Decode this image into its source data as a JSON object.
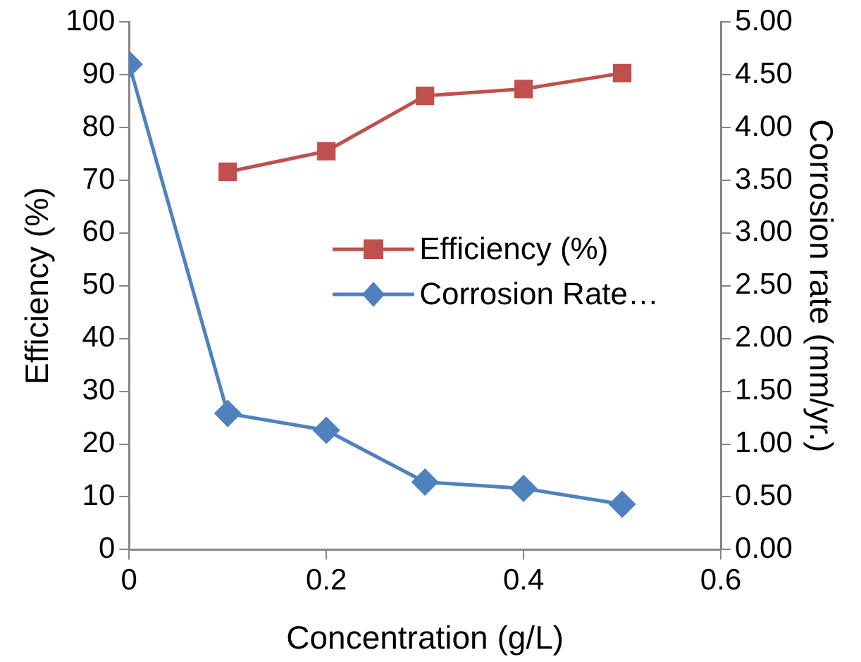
{
  "chart_data": {
    "type": "line",
    "xlabel": "Concentration (g/L)",
    "ylabel": "Efficiency (%)",
    "y2label": "Corrosion rate (mm/yr.)",
    "xlim": [
      0,
      0.6
    ],
    "xticks": [
      0,
      0.2,
      0.4,
      0.6
    ],
    "ylim": [
      0,
      100
    ],
    "yticks": [
      0,
      10,
      20,
      30,
      40,
      50,
      60,
      70,
      80,
      90,
      100
    ],
    "y2lim": [
      0,
      5
    ],
    "y2ticks": [
      {
        "value": 0,
        "label": "0.00"
      },
      {
        "value": 0.5,
        "label": "0.50"
      },
      {
        "value": 1,
        "label": "1.00"
      },
      {
        "value": 1.5,
        "label": "1.50"
      },
      {
        "value": 2,
        "label": "2.00"
      },
      {
        "value": 2.5,
        "label": "2.50"
      },
      {
        "value": 3,
        "label": "3.00"
      },
      {
        "value": 3.5,
        "label": "3.50"
      },
      {
        "value": 4,
        "label": "4.00"
      },
      {
        "value": 4.5,
        "label": "4.50"
      },
      {
        "value": 5,
        "label": "5.00"
      }
    ],
    "grid": false,
    "legend": "center",
    "series": [
      {
        "name": "Efficiency (%)",
        "color": "#c0504d",
        "marker": "square",
        "x": [
          0.1,
          0.2,
          0.3,
          0.4,
          0.5
        ],
        "values": [
          71.6,
          75.5,
          86.0,
          87.3,
          90.3
        ]
      },
      {
        "name": "Corrosion Rate…",
        "color": "#4f81bd",
        "marker": "diamond",
        "axis": "y2",
        "x": [
          0,
          0.1,
          0.2,
          0.3,
          0.4,
          0.5
        ],
        "values": [
          4.6,
          1.29,
          1.13,
          0.64,
          0.58,
          0.43
        ]
      }
    ]
  }
}
